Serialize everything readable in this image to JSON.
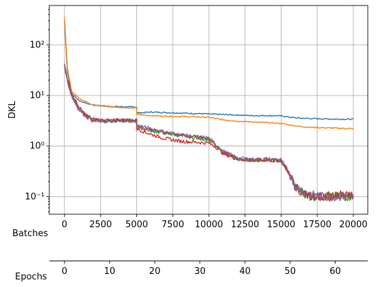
{
  "chart_data": {
    "type": "line",
    "ylabel": "DKL",
    "yscale": "log",
    "ylim": [
      0.045,
      600
    ],
    "grid": true,
    "x_axes": [
      {
        "label": "Batches",
        "range": [
          -1050,
          21000
        ],
        "ticks": [
          0,
          2500,
          5000,
          7500,
          10000,
          12500,
          15000,
          17500,
          20000
        ],
        "tick_labels": [
          "0",
          "2500",
          "5000",
          "7500",
          "10000",
          "12500",
          "15000",
          "17500",
          "20000"
        ]
      },
      {
        "label": "Epochs",
        "range": [
          -3.36,
          67.2
        ],
        "ticks": [
          0,
          10,
          20,
          30,
          40,
          50,
          60
        ],
        "tick_labels": [
          "0",
          "10",
          "20",
          "30",
          "40",
          "50",
          "60"
        ]
      }
    ],
    "y_ticks": [
      0.1,
      1,
      10,
      100
    ],
    "y_tick_labels": [
      "10⁻¹",
      "10⁰",
      "10¹",
      "10²"
    ],
    "series": [
      {
        "color": "#1f77b4",
        "x": [
          0,
          200,
          500,
          1000,
          1500,
          2000,
          3000,
          4000,
          4999,
          5001,
          6000,
          7000,
          8000,
          9000,
          10000,
          11000,
          12000,
          13000,
          14000,
          15000,
          16000,
          17000,
          18000,
          19000,
          20000
        ],
        "y": [
          300,
          30,
          11,
          8,
          7,
          6.5,
          6.1,
          6.0,
          5.9,
          4.5,
          4.7,
          4.6,
          4.5,
          4.4,
          4.3,
          4.2,
          4.1,
          4.0,
          4.0,
          3.95,
          3.6,
          3.5,
          3.45,
          3.4,
          3.4
        ]
      },
      {
        "color": "#ff7f0e",
        "x": [
          0,
          200,
          500,
          1000,
          1500,
          2000,
          3000,
          4000,
          4999,
          5001,
          6000,
          7000,
          8000,
          9000,
          10000,
          11000,
          12000,
          13000,
          14000,
          15000,
          16000,
          17000,
          18000,
          19000,
          20000
        ],
        "y": [
          350,
          35,
          12,
          9,
          7.5,
          6.5,
          6.0,
          5.8,
          5.6,
          4.2,
          4.0,
          3.9,
          3.85,
          3.8,
          3.7,
          3.3,
          3.1,
          3.0,
          2.9,
          2.8,
          2.5,
          2.35,
          2.3,
          2.25,
          2.2
        ]
      },
      {
        "color": "#2ca02c",
        "x": [
          0,
          200,
          500,
          1000,
          1500,
          2000,
          3000,
          4000,
          4999,
          5001,
          6000,
          7000,
          8000,
          9000,
          10000,
          10500,
          11000,
          12000,
          13000,
          14000,
          15000,
          15500,
          16000,
          17000,
          18000,
          19000,
          20000
        ],
        "y": [
          40,
          20,
          10,
          5.5,
          4.0,
          3.3,
          3.1,
          3.2,
          3.1,
          2.4,
          2.0,
          1.8,
          1.6,
          1.45,
          1.35,
          1.0,
          0.75,
          0.55,
          0.52,
          0.53,
          0.5,
          0.3,
          0.15,
          0.1,
          0.1,
          0.1,
          0.1
        ]
      },
      {
        "color": "#d62728",
        "x": [
          0,
          200,
          500,
          1000,
          1500,
          2000,
          3000,
          4000,
          4999,
          5001,
          6000,
          7000,
          8000,
          9000,
          10000,
          10500,
          11000,
          12000,
          13000,
          14000,
          15000,
          15500,
          16000,
          17000,
          18000,
          19000,
          20000
        ],
        "y": [
          42,
          21,
          11,
          5.8,
          4.1,
          3.4,
          3.2,
          3.3,
          3.2,
          2.2,
          1.7,
          1.4,
          1.25,
          1.2,
          1.15,
          0.95,
          0.7,
          0.55,
          0.52,
          0.53,
          0.5,
          0.3,
          0.15,
          0.1,
          0.1,
          0.11,
          0.11
        ]
      },
      {
        "color": "#9467bd",
        "x": [
          0,
          200,
          500,
          1000,
          1500,
          2000,
          3000,
          4000,
          4999,
          5001,
          6000,
          7000,
          8000,
          9000,
          10000,
          10500,
          11000,
          12000,
          13000,
          14000,
          15000,
          15500,
          16000,
          17000,
          18000,
          19000,
          20000
        ],
        "y": [
          38,
          19,
          9.5,
          5.2,
          3.8,
          3.1,
          3.0,
          3.15,
          3.1,
          2.6,
          2.2,
          1.9,
          1.7,
          1.55,
          1.45,
          1.05,
          0.8,
          0.58,
          0.55,
          0.56,
          0.54,
          0.32,
          0.16,
          0.11,
          0.1,
          0.1,
          0.11
        ]
      },
      {
        "color": "#8c564b",
        "x": [
          0,
          200,
          500,
          1000,
          1500,
          2000,
          3000,
          4000,
          4999,
          5001,
          6000,
          7000,
          8000,
          9000,
          10000,
          10500,
          11000,
          12000,
          13000,
          14000,
          15000,
          15500,
          16000,
          17000,
          18000,
          19000,
          20000
        ],
        "y": [
          41,
          20,
          10.2,
          5.6,
          4.0,
          3.3,
          3.2,
          3.25,
          3.2,
          2.5,
          2.1,
          1.85,
          1.65,
          1.5,
          1.4,
          1.0,
          0.75,
          0.56,
          0.53,
          0.54,
          0.52,
          0.31,
          0.15,
          0.1,
          0.1,
          0.1,
          0.1
        ]
      }
    ]
  }
}
